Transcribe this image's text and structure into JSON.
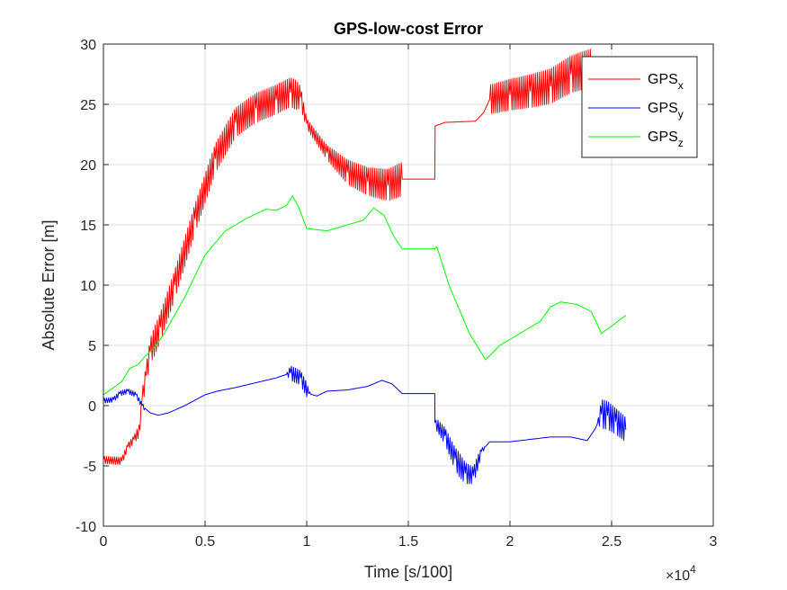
{
  "chart_data": {
    "type": "line",
    "title": "GPS-low-cost Error",
    "xlabel": "Time [s/100]",
    "ylabel": "Absolute Error [m]",
    "x_exponent_label": "×10",
    "x_exponent_power": "4",
    "xlim": [
      0,
      30000
    ],
    "ylim": [
      -10,
      30
    ],
    "xticks": [
      0,
      5000,
      10000,
      15000,
      20000,
      25000,
      30000
    ],
    "xtick_labels": [
      "0",
      "0.5",
      "1",
      "1.5",
      "2",
      "2.5",
      "3"
    ],
    "yticks": [
      -10,
      -5,
      0,
      5,
      10,
      15,
      20,
      25,
      30
    ],
    "ytick_labels": [
      "-10",
      "-5",
      "0",
      "5",
      "10",
      "15",
      "20",
      "25",
      "30"
    ],
    "grid": true,
    "legend_position": "top-right",
    "series": [
      {
        "name": "GPS",
        "subscript": "x",
        "color": "#ff0000",
        "oscillation": [
          [
            1500,
            0.3
          ],
          [
            2500,
            1.2
          ],
          [
            9500,
            1.2
          ],
          [
            10000,
            0.4
          ],
          [
            11000,
            0.6
          ],
          [
            12000,
            1.0
          ],
          [
            14700,
            1.4
          ],
          [
            14700,
            0
          ],
          [
            19000,
            0
          ],
          [
            19000,
            1.2
          ],
          [
            24000,
            1.6
          ],
          [
            24000,
            0
          ]
        ],
        "x": [
          0,
          900,
          1200,
          1500,
          1800,
          1900,
          2100,
          2300,
          2800,
          3500,
          4500,
          5500,
          6500,
          7500,
          8500,
          9200,
          9700,
          10000,
          11000,
          12000,
          13000,
          14000,
          14700,
          14710,
          16300,
          16320,
          16800,
          18300,
          18700,
          19000,
          20000,
          21000,
          22000,
          23000,
          24000,
          25700
        ],
        "y": [
          -4.5,
          -4.6,
          -3.4,
          -2.8,
          -2.0,
          0.5,
          2.5,
          4.5,
          6.5,
          10.0,
          15.5,
          20.5,
          23.5,
          24.7,
          25.4,
          26.0,
          25.6,
          23.4,
          21.0,
          19.4,
          18.6,
          18.3,
          18.8,
          18.8,
          18.8,
          23.2,
          23.5,
          23.6,
          24.3,
          25.4,
          25.8,
          26.1,
          26.5,
          27.5,
          28.0,
          28.9
        ]
      },
      {
        "name": "GPS",
        "subscript": "y",
        "color": "#0000ff",
        "oscillation": [
          [
            0,
            0.2
          ],
          [
            2000,
            0.2
          ],
          [
            2000,
            0
          ],
          [
            9000,
            0
          ],
          [
            9200,
            0.6
          ],
          [
            10000,
            0.6
          ],
          [
            10200,
            0
          ],
          [
            16300,
            0
          ],
          [
            16400,
            0.5
          ],
          [
            17500,
            1.0
          ],
          [
            18400,
            0.6
          ],
          [
            18800,
            0
          ],
          [
            24300,
            0
          ],
          [
            24500,
            1.2
          ],
          [
            25700,
            1.0
          ]
        ],
        "x": [
          0,
          500,
          800,
          1200,
          1600,
          1900,
          2300,
          2700,
          3200,
          4000,
          5000,
          5600,
          6500,
          7500,
          8500,
          9200,
          9700,
          10100,
          10500,
          11000,
          12000,
          13000,
          13700,
          14200,
          14700,
          16300,
          16310,
          16800,
          17300,
          17800,
          18200,
          18600,
          19000,
          20000,
          21000,
          22000,
          23000,
          23800,
          24200,
          24500,
          24800,
          25200,
          25700
        ],
        "y": [
          0.4,
          0.5,
          1.0,
          1.2,
          0.9,
          0.0,
          -0.6,
          -0.8,
          -0.6,
          0.0,
          0.9,
          1.2,
          1.5,
          1.9,
          2.3,
          2.7,
          2.3,
          1.0,
          0.8,
          1.2,
          1.3,
          1.6,
          2.1,
          1.8,
          1.0,
          1.0,
          -1.4,
          -2.5,
          -4.4,
          -5.6,
          -5.8,
          -3.8,
          -3.0,
          -3.0,
          -2.8,
          -2.6,
          -2.6,
          -2.9,
          -1.9,
          -0.7,
          -0.8,
          -1.3,
          -2.0
        ]
      },
      {
        "name": "GPS",
        "subscript": "z",
        "color": "#00ff00",
        "x": [
          0,
          500,
          900,
          1300,
          1700,
          2000,
          2500,
          3000,
          4000,
          5000,
          6000,
          7000,
          8000,
          8500,
          9000,
          9300,
          9600,
          10000,
          11000,
          12000,
          12800,
          13300,
          13800,
          14300,
          14700,
          16300,
          16400,
          17000,
          18000,
          18800,
          19500,
          20500,
          21500,
          22000,
          22500,
          23300,
          24000,
          24500,
          25000,
          25700
        ],
        "y": [
          0.9,
          1.5,
          2.0,
          3.1,
          3.4,
          4.0,
          4.8,
          6.0,
          9.0,
          12.5,
          14.5,
          15.5,
          16.3,
          16.2,
          16.6,
          17.4,
          16.5,
          14.7,
          14.5,
          15.0,
          15.4,
          16.4,
          15.8,
          14.0,
          13.0,
          13.0,
          13.2,
          10.0,
          6.0,
          3.8,
          5.0,
          6.0,
          7.0,
          8.2,
          8.6,
          8.4,
          7.8,
          6.0,
          6.6,
          7.5
        ]
      }
    ]
  }
}
